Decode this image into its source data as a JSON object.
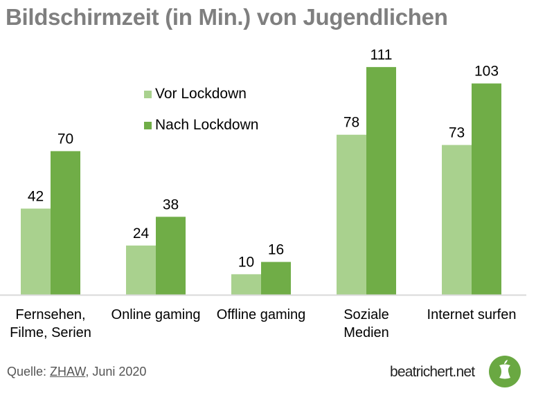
{
  "chart_data": {
    "type": "bar",
    "title": "Bildschirmzeit (in Min.) von Jugendlichen",
    "xlabel": "",
    "ylabel": "",
    "ylim": [
      0,
      111
    ],
    "grid": false,
    "legend_position": "top-left",
    "categories": [
      [
        "Fernsehen,",
        "Filme, Serien"
      ],
      [
        "Online gaming"
      ],
      [
        "Offline gaming"
      ],
      [
        "Soziale",
        "Medien"
      ],
      [
        "Internet surfen"
      ]
    ],
    "series": [
      {
        "name": "Vor Lockdown",
        "color": "#a9d18e",
        "values": [
          42,
          24,
          10,
          78,
          73
        ]
      },
      {
        "name": "Nach Lockdown",
        "color": "#70ad47",
        "values": [
          70,
          38,
          16,
          111,
          103
        ]
      }
    ]
  },
  "footer": {
    "source_prefix": "Quelle: ",
    "source_link": "ZHAW",
    "source_suffix": ", Juni 2020",
    "brand": "beatrichert.net",
    "logo_icon": "apple-core-icon",
    "logo_color": "#6aa842"
  }
}
